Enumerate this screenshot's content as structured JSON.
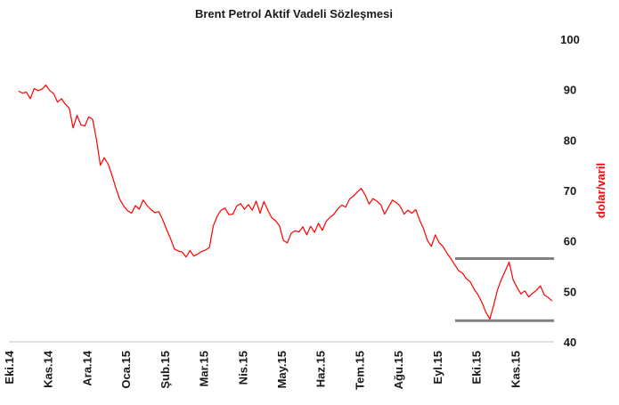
{
  "chart_data": {
    "type": "line",
    "title": "Brent Petrol Aktif Vadeli Sözleşmesi",
    "xlabel": "",
    "ylabel": "dolar/varil",
    "ylim": [
      40,
      100
    ],
    "yticks": [
      40,
      50,
      60,
      70,
      80,
      90,
      100
    ],
    "xticks": [
      "Eki.14",
      "Kas.14",
      "Ara.14",
      "Oca.15",
      "Şub.15",
      "Mar.15",
      "Nis.15",
      "May.15",
      "Haz.15",
      "Tem.15",
      "Ağu.15",
      "Eyl.15",
      "Eki.15",
      "Kas.15"
    ],
    "grid": false,
    "colors": {
      "line": "#ff0000",
      "ylabel": "#ff0000",
      "band": "#808080",
      "axis": "#bfbfbf"
    },
    "series": [
      {
        "x": [
          0.25,
          0.35,
          0.45,
          0.55,
          0.65,
          0.75,
          0.85,
          0.95,
          1.05,
          1.15,
          1.25,
          1.35,
          1.45,
          1.55,
          1.65,
          1.75,
          1.85,
          1.95,
          2.05,
          2.15,
          2.25,
          2.35,
          2.45,
          2.55,
          2.65,
          2.75,
          2.85,
          2.95,
          3.05,
          3.15,
          3.25,
          3.35,
          3.45,
          3.55,
          3.65,
          3.75,
          3.85,
          3.95,
          4.05,
          4.15,
          4.25,
          4.35,
          4.45,
          4.55,
          4.65,
          4.75,
          4.85,
          4.95,
          5.05,
          5.15,
          5.25,
          5.35,
          5.45,
          5.55,
          5.65,
          5.75,
          5.85,
          5.95,
          6.05,
          6.15,
          6.25,
          6.35,
          6.45,
          6.55,
          6.65,
          6.75,
          6.85,
          6.95,
          7.05,
          7.15,
          7.25,
          7.35,
          7.45,
          7.55,
          7.65,
          7.75,
          7.85,
          7.95,
          8.05,
          8.15,
          8.25,
          8.35,
          8.45,
          8.55,
          8.65,
          8.75,
          8.85,
          8.95,
          9.05,
          9.15,
          9.25,
          9.35,
          9.45,
          9.55,
          9.65,
          9.75,
          9.85,
          9.95,
          10.05,
          10.15,
          10.25,
          10.35,
          10.45,
          10.55,
          10.65,
          10.75,
          10.85,
          10.95,
          11.05,
          11.15,
          11.25,
          11.35,
          11.45,
          11.55,
          11.65,
          11.75,
          11.85,
          11.95,
          12.05,
          12.15,
          12.25,
          12.35,
          12.45,
          12.55,
          12.65,
          12.75,
          12.85,
          12.95,
          13.05,
          13.15,
          13.25,
          13.35,
          13.45,
          13.55,
          13.65,
          13.75,
          13.85,
          13.95
        ],
        "values": [
          89.7,
          89.3,
          89.5,
          88.2,
          90.2,
          89.8,
          90.1,
          90.9,
          89.8,
          89.2,
          87.5,
          88.2,
          87.1,
          86.3,
          82.4,
          84.9,
          83.0,
          82.8,
          84.6,
          84.1,
          80.0,
          75.0,
          76.5,
          75.2,
          73.0,
          70.4,
          68.2,
          66.9,
          66.0,
          65.5,
          67.0,
          66.3,
          68.1,
          67.0,
          66.2,
          65.6,
          65.8,
          64.2,
          62.3,
          60.5,
          58.4,
          58.0,
          57.8,
          56.8,
          58.1,
          57.0,
          57.4,
          57.9,
          58.2,
          58.7,
          63.0,
          64.9,
          66.1,
          66.5,
          65.2,
          65.3,
          66.9,
          67.4,
          66.3,
          67.2,
          66.1,
          67.9,
          65.5,
          67.8,
          66.1,
          64.6,
          64.0,
          63.0,
          60.1,
          59.6,
          61.5,
          62.0,
          61.8,
          62.8,
          61.2,
          62.9,
          61.7,
          63.5,
          62.1,
          63.9,
          64.7,
          65.3,
          66.4,
          67.1,
          66.7,
          68.3,
          68.9,
          69.7,
          70.4,
          69.1,
          67.3,
          68.4,
          67.9,
          67.2,
          65.3,
          66.7,
          68.1,
          67.6,
          66.9,
          65.3,
          66.1,
          65.5,
          66.2,
          64.1,
          62.4,
          60.1,
          58.9,
          61.2,
          59.7,
          58.9,
          57.6,
          56.5,
          55.3,
          54.1,
          53.6,
          52.5,
          51.9,
          50.4,
          49.3,
          47.8,
          45.9,
          44.5,
          47.2,
          50.3,
          52.4,
          54.1,
          55.8,
          52.3,
          50.8,
          49.5,
          50.1,
          48.9,
          49.6,
          50.2,
          51.1,
          49.3,
          48.8,
          48.1
        ]
      }
    ],
    "annotations": [
      {
        "type": "hline",
        "y": 56.5
      },
      {
        "type": "hline",
        "y": 44.2
      }
    ]
  }
}
